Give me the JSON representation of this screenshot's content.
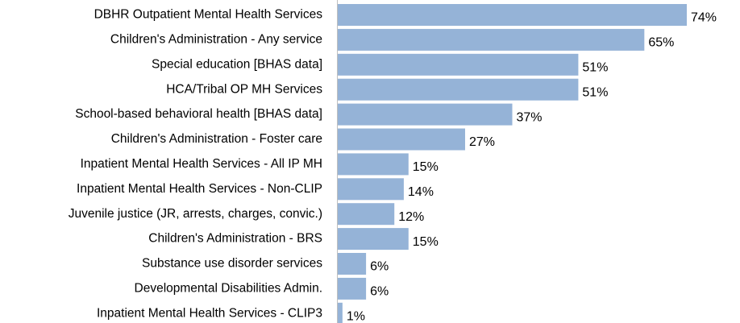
{
  "chart_data": {
    "type": "bar",
    "orientation": "horizontal",
    "categories": [
      "DBHR Outpatient Mental Health Services",
      "Children's Administration - Any service",
      "Special education [BHAS data]",
      "HCA/Tribal OP MH Services",
      "School-based behavioral health [BHAS data]",
      "Children's Administration - Foster care",
      "Inpatient Mental Health Services - All IP MH",
      "Inpatient Mental Health Services - Non-CLIP",
      "Juvenile justice (JR, arrests, charges, convic.)",
      "Children's Administration - BRS",
      "Substance use disorder services",
      "Developmental Disabilities Admin.",
      "Inpatient Mental Health Services - CLIP3"
    ],
    "values": [
      74,
      65,
      51,
      51,
      37,
      27,
      15,
      14,
      12,
      15,
      6,
      6,
      1
    ],
    "value_labels": [
      "74%",
      "65%",
      "51%",
      "51%",
      "37%",
      "27%",
      "15%",
      "14%",
      "12%",
      "15%",
      "6%",
      "6%",
      "1%"
    ],
    "color": "#95b3d7"
  }
}
